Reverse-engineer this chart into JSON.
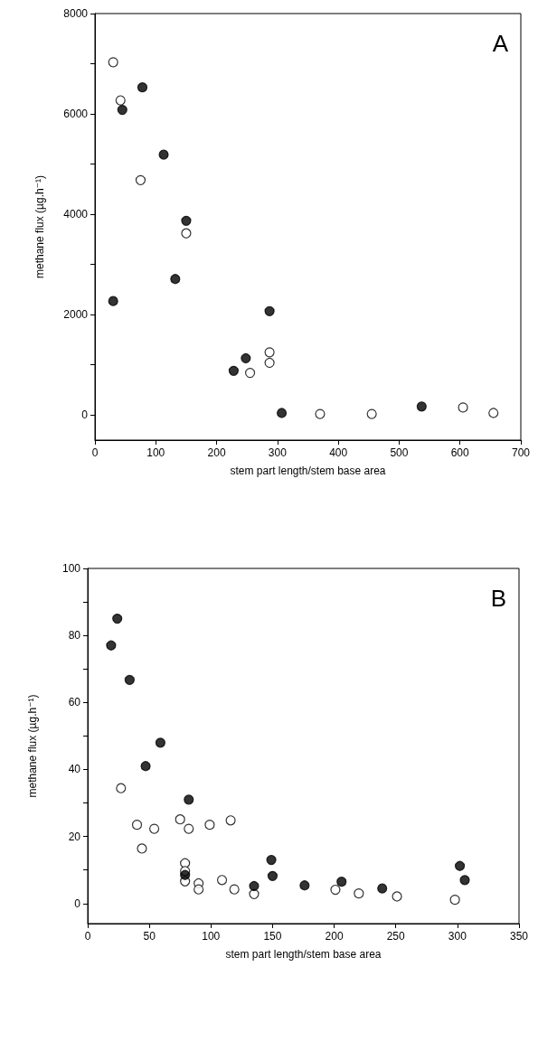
{
  "chart_data": [
    {
      "type": "scatter",
      "xlabel": "stem part length/stem base area",
      "ylabel": "methane flux (µg.h⁻¹)",
      "annotations": [
        "A"
      ],
      "marker": "circle",
      "grid": false,
      "xlim": [
        0,
        700
      ],
      "xticks": [
        0,
        100,
        200,
        300,
        400,
        500,
        600,
        700
      ],
      "ylim": [
        -500,
        8000
      ],
      "yticks": [
        0,
        {
          "value": 1000,
          "label": null
        },
        2000,
        {
          "value": 3000,
          "label": null
        },
        4000,
        {
          "value": 5000,
          "label": null
        },
        6000,
        {
          "value": 7000,
          "label": null
        },
        8000
      ],
      "series": [
        {
          "color": "#ffffff",
          "x": [
            30,
            42,
            75,
            150,
            255,
            287,
            287,
            370,
            455,
            605,
            655
          ],
          "values": [
            7030,
            6270,
            4680,
            3620,
            840,
            1250,
            1040,
            20,
            20,
            150,
            40
          ]
        },
        {
          "color": "#000000",
          "x": [
            30,
            45,
            78,
            113,
            150,
            132,
            228,
            248,
            287,
            307,
            537
          ],
          "values": [
            2270,
            6080,
            6530,
            5190,
            3870,
            2710,
            880,
            1130,
            2070,
            40,
            170
          ]
        }
      ]
    },
    {
      "type": "scatter",
      "xlabel": "stem part length/stem base area",
      "ylabel": "methane flux (µg.h⁻¹)",
      "annotations": [
        "B"
      ],
      "marker": "circle",
      "grid": false,
      "xlim": [
        0,
        350
      ],
      "xticks": [
        0,
        50,
        100,
        150,
        200,
        250,
        300,
        350
      ],
      "ylim": [
        -6,
        100
      ],
      "yticks": [
        0,
        {
          "value": 10,
          "label": null
        },
        20,
        {
          "value": 30,
          "label": null
        },
        40,
        {
          "value": 50,
          "label": null
        },
        60,
        {
          "value": 70,
          "label": null
        },
        80,
        {
          "value": 90,
          "label": null
        },
        100
      ],
      "series": [
        {
          "color": "#ffffff",
          "x": [
            27,
            40,
            44,
            54,
            75,
            82,
            79,
            79,
            79,
            90,
            90,
            99,
            116,
            109,
            119,
            135,
            201,
            220,
            251,
            298
          ],
          "values": [
            34.4,
            23.5,
            16.4,
            22.3,
            25.1,
            22.3,
            12,
            9.7,
            6.6,
            6,
            4.2,
            23.5,
            24.8,
            7,
            4.2,
            2.8,
            4.1,
            3,
            2.1,
            1.1
          ]
        },
        {
          "color": "#000000",
          "x": [
            19,
            24,
            34,
            59,
            47,
            82,
            79,
            135,
            149,
            150,
            176,
            206,
            239,
            302,
            306
          ],
          "values": [
            77,
            85,
            66.7,
            48,
            41,
            31,
            8.5,
            5.2,
            13,
            8.2,
            5.4,
            6.5,
            4.5,
            11.2,
            7
          ]
        }
      ]
    }
  ]
}
